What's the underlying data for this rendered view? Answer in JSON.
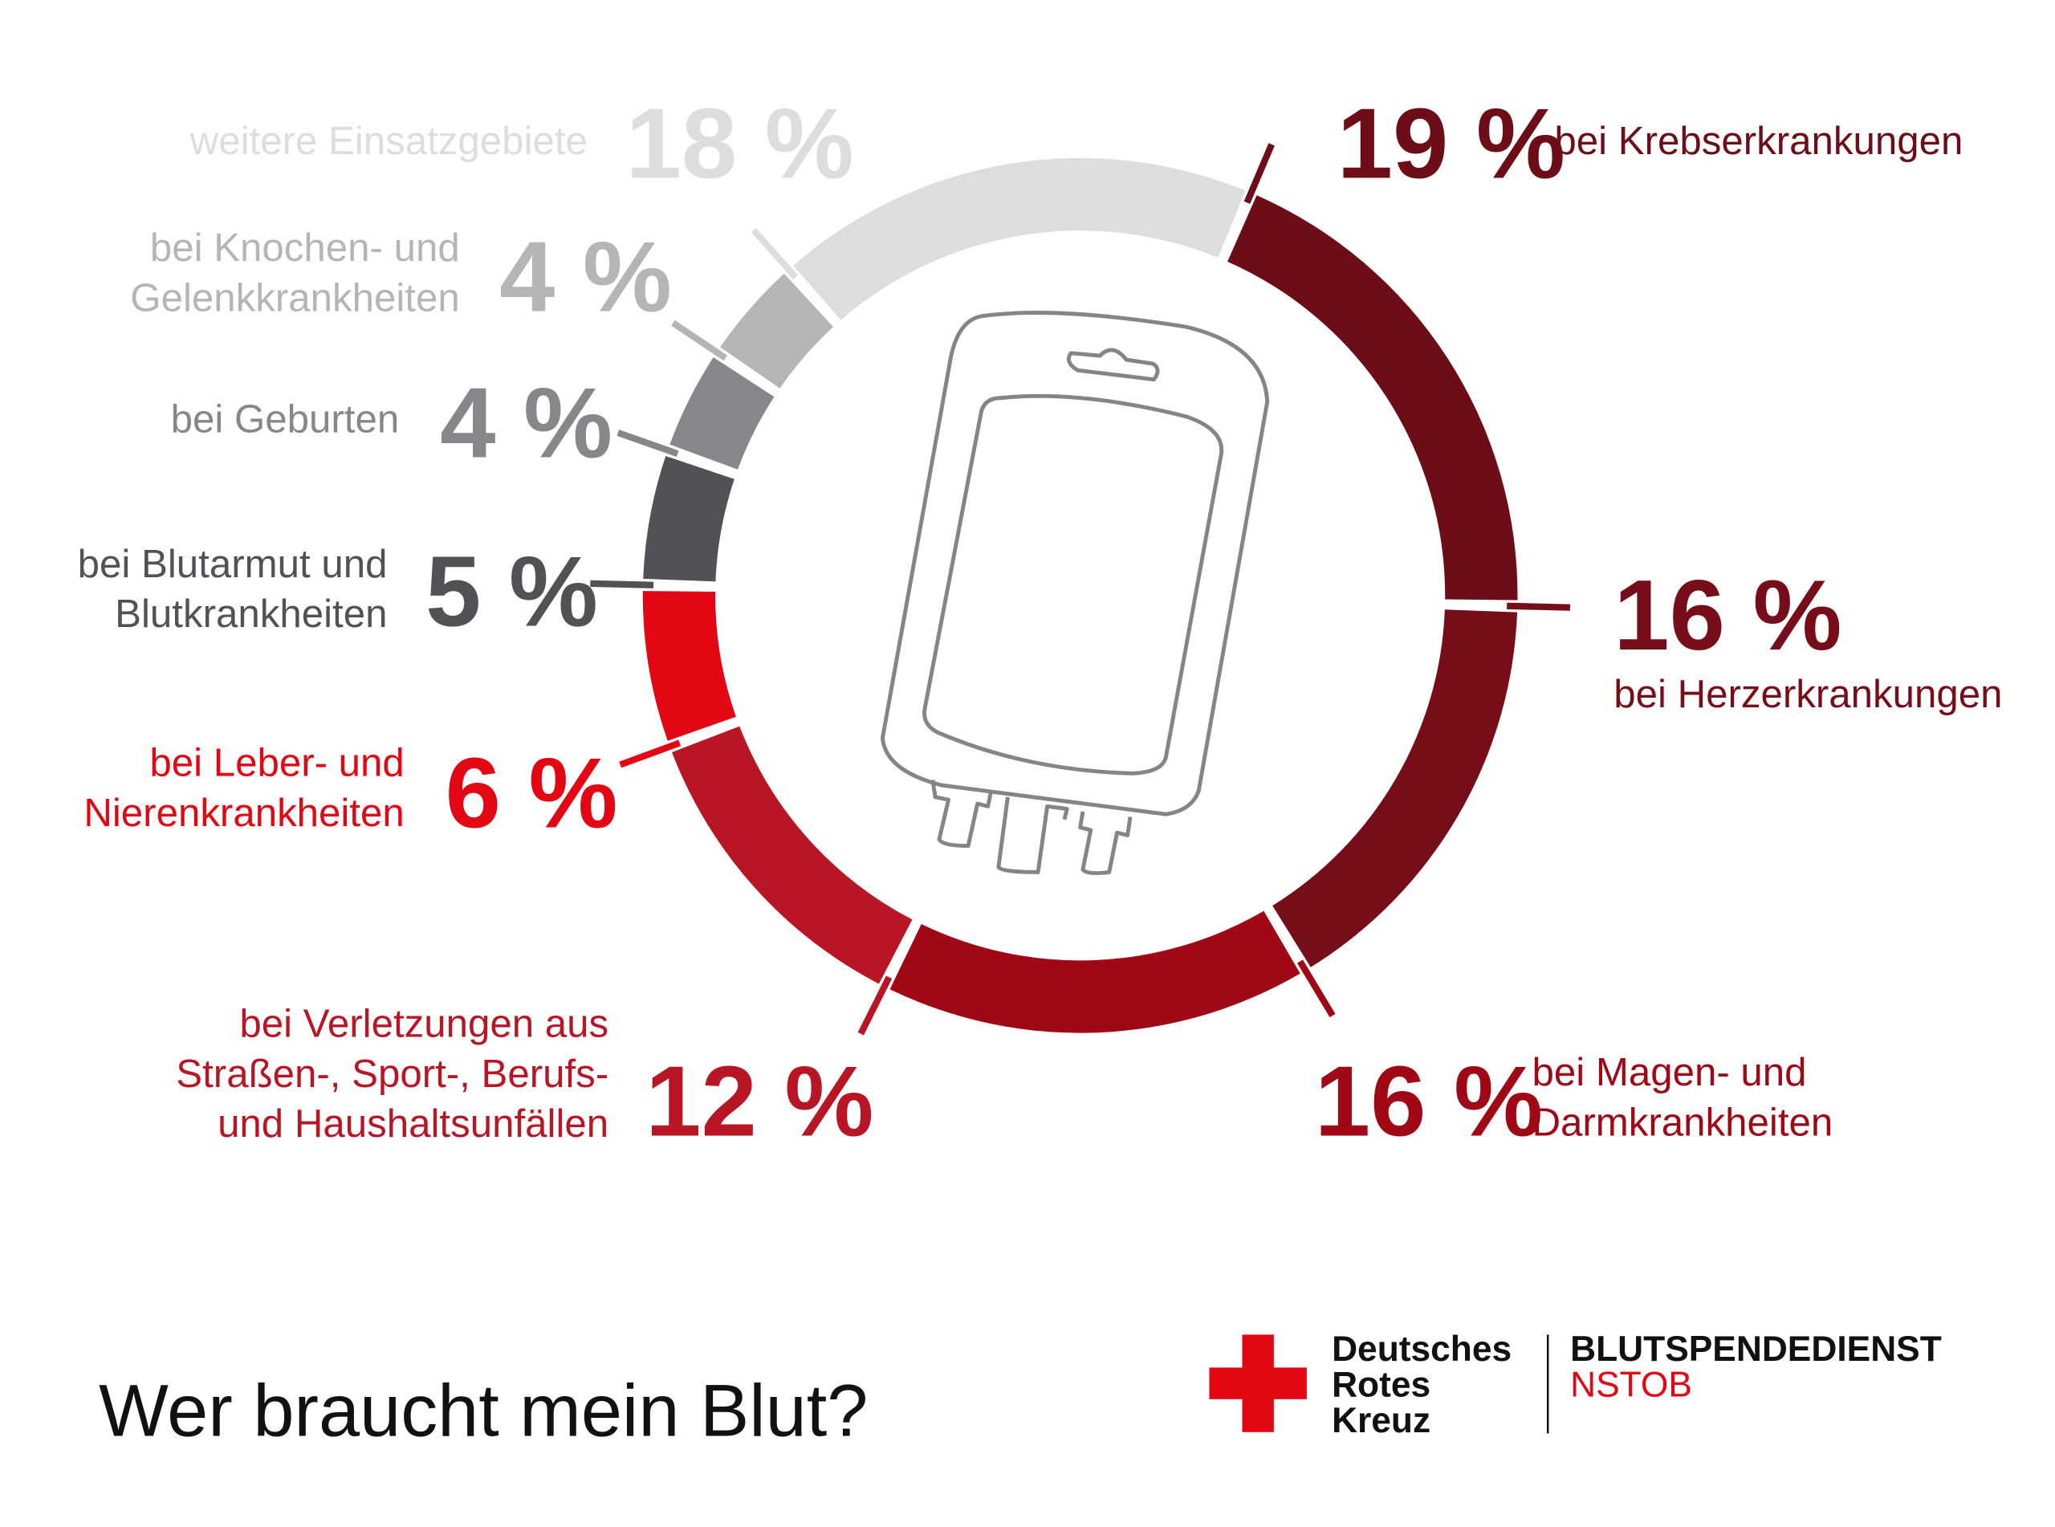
{
  "chart_data": {
    "type": "pie",
    "variant": "donut",
    "title": "Wer braucht mein Blut?",
    "categories": [
      [
        "bei Krebserkrankungen"
      ],
      [
        "bei Herzerkrankungen"
      ],
      [
        "bei Magen- und",
        "Darmkrankheiten"
      ],
      [
        "bei Verletzungen aus",
        "Straßen-, Sport-, Berufs-",
        "und Haushaltsunfällen"
      ],
      [
        "bei Leber- und",
        "Nierenkrankheiten"
      ],
      [
        "bei Blutarmut und",
        "Blutkrankheiten"
      ],
      [
        "bei Geburten"
      ],
      [
        "bei Knochen- und",
        "Gelenkkrankheiten"
      ],
      [
        "weitere Einsatzgebiete"
      ]
    ],
    "values": [
      19,
      16,
      16,
      12,
      6,
      5,
      4,
      4,
      18
    ],
    "value_labels": [
      "19 %",
      "16 %",
      "16 %",
      "12 %",
      "6 %",
      "5 %",
      "4 %",
      "4 %",
      "18 %"
    ],
    "colors": [
      "#6d0d17",
      "#780d1a",
      "#a10816",
      "#b91625",
      "#e30613",
      "#505256",
      "#85878a",
      "#b3b5b7",
      "#dcdddf"
    ],
    "direction": "clockwise",
    "center_icon": "blood-bag-icon"
  },
  "logo": {
    "line1": "Deutsches",
    "line2": "Rotes",
    "line3": "Kreuz",
    "service": "BLUTSPENDEDIENST",
    "region": "NSTOB",
    "cross_color": "#e30613",
    "icon": "red-cross-icon"
  }
}
